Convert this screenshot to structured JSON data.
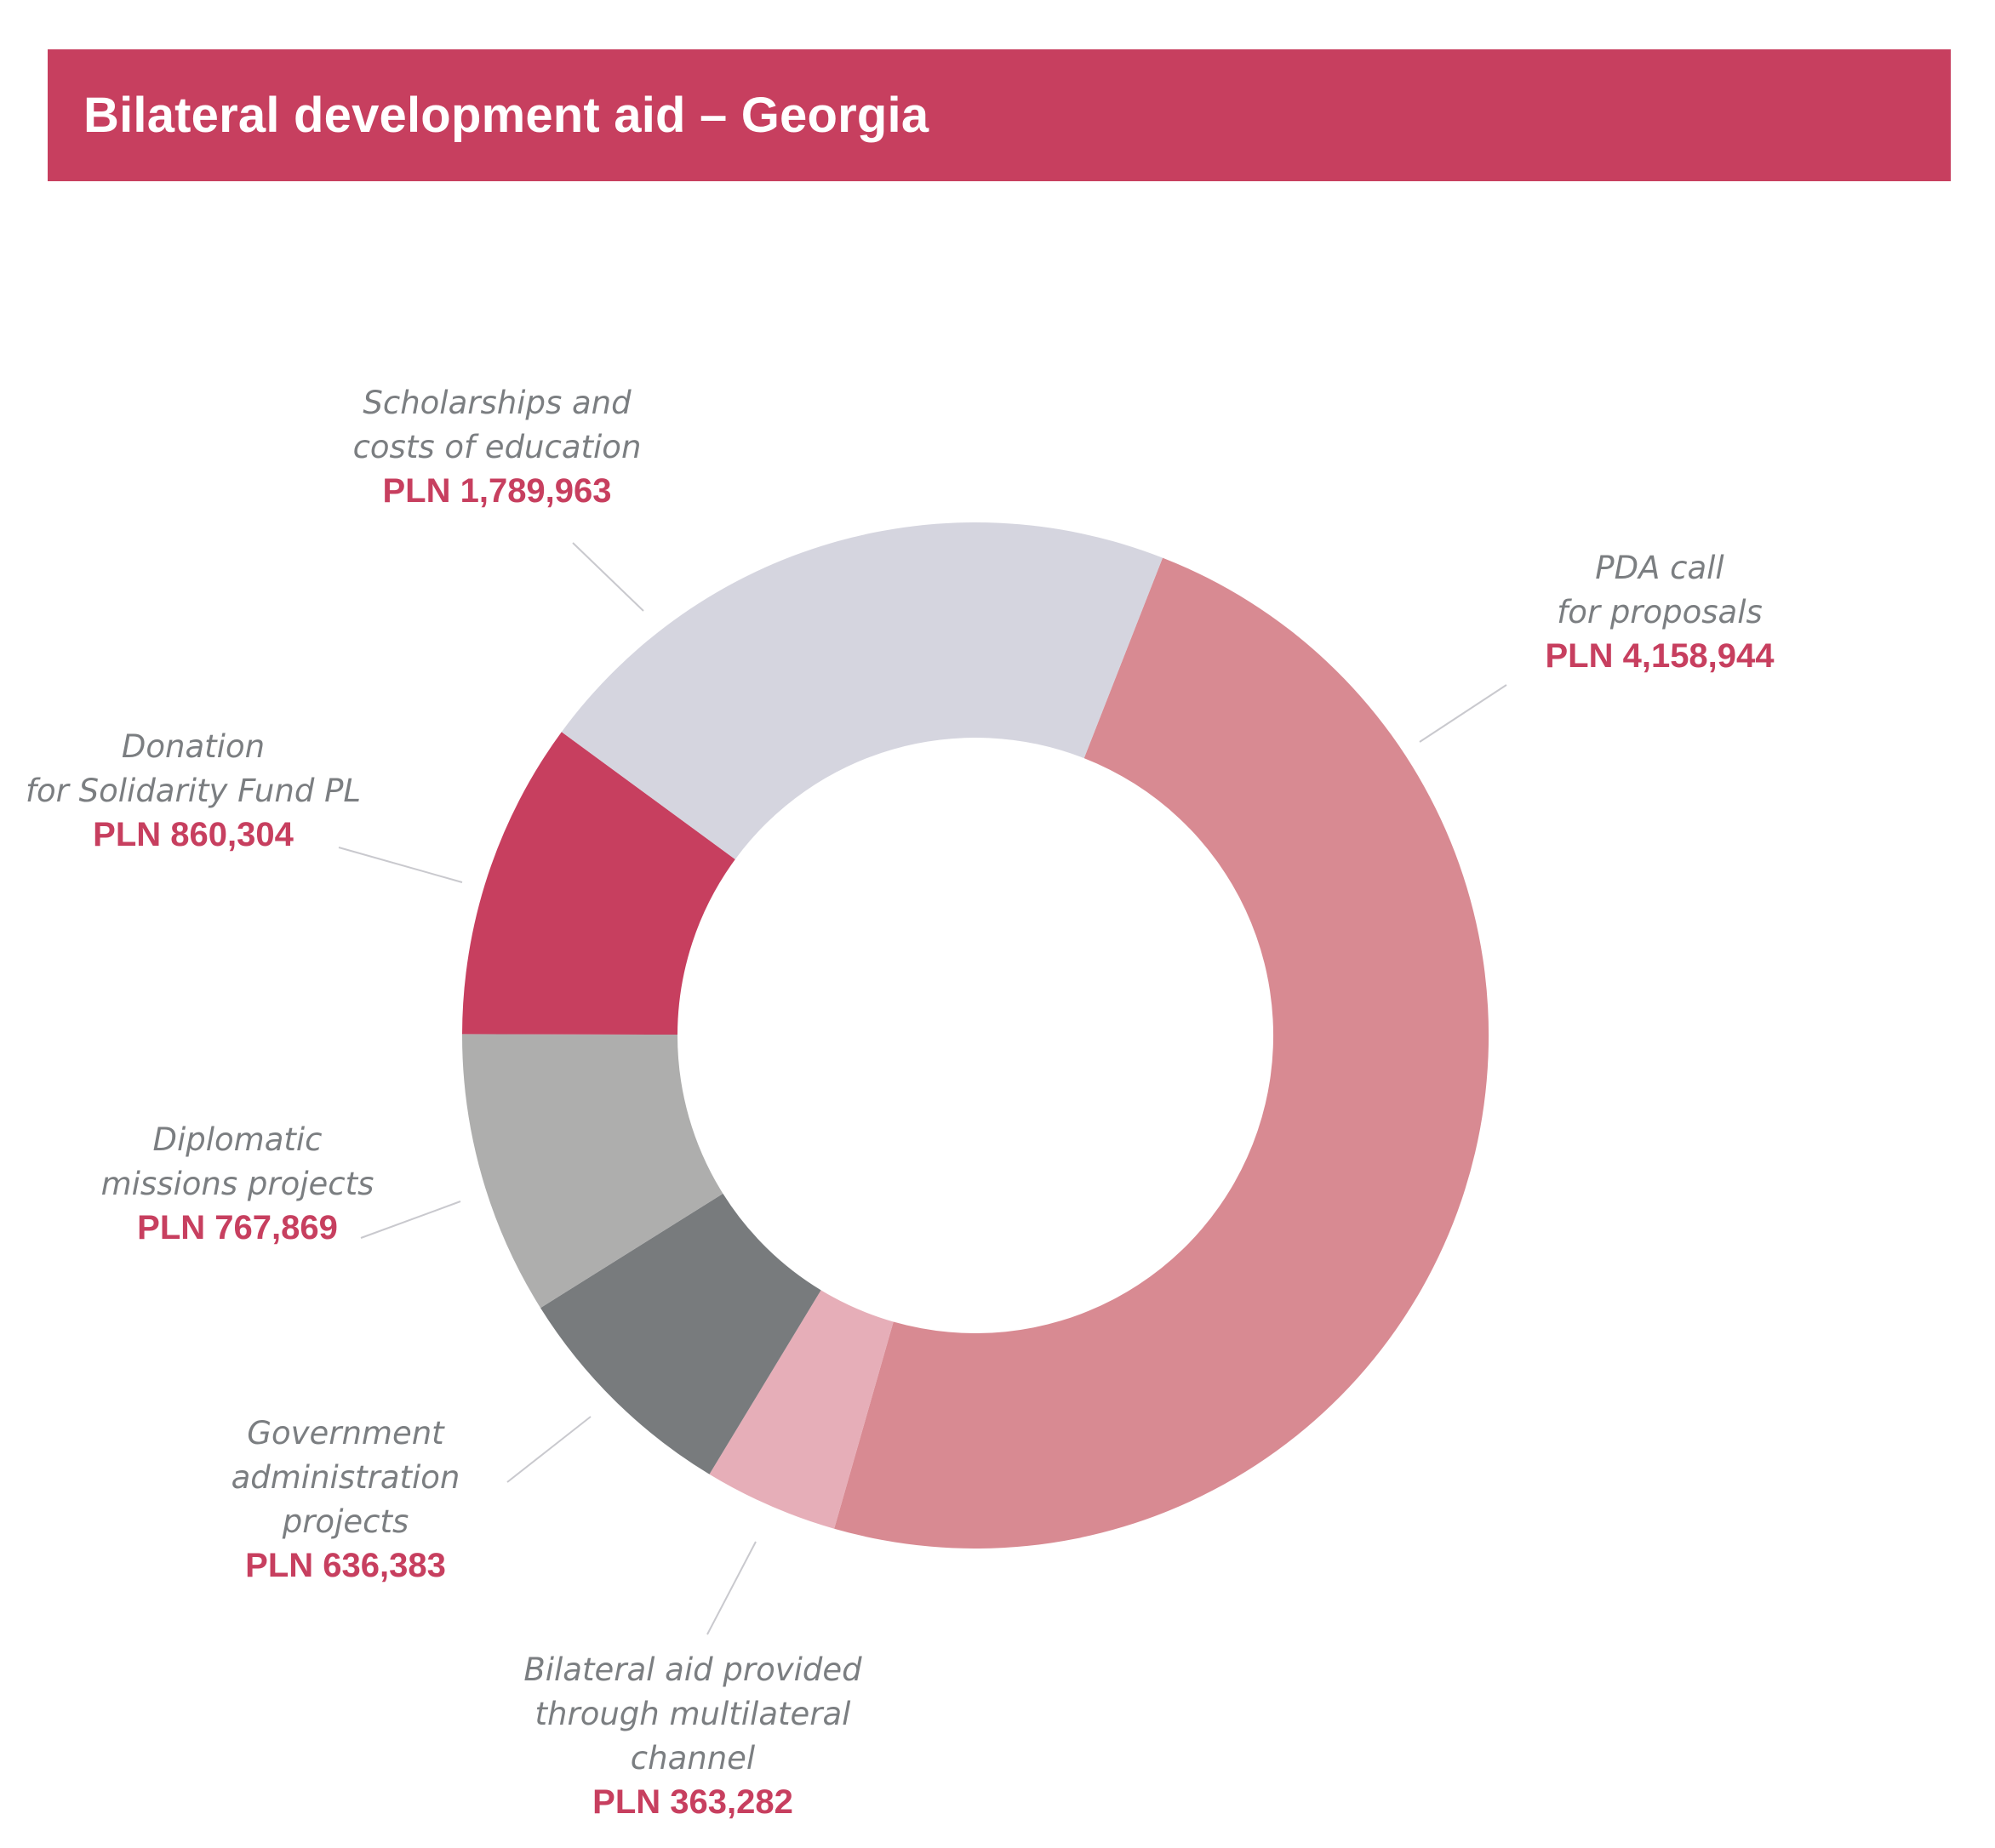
{
  "header": {
    "title": "Bilateral development aid – Georgia"
  },
  "chart_data": {
    "type": "pie",
    "variant": "donut",
    "title": "Bilateral development aid – Georgia",
    "currency": "PLN",
    "segments": [
      {
        "key": "pda",
        "name_lines": [
          "PDA call",
          "for proposals"
        ],
        "value": 4158944,
        "value_label": "PLN 4,158,944",
        "color": "#d88a92"
      },
      {
        "key": "multilateral",
        "name_lines": [
          "Bilateral aid provided",
          "through multilateral",
          "channel"
        ],
        "value": 363282,
        "value_label": "PLN 363,282",
        "color": "#e6aeb8"
      },
      {
        "key": "government",
        "name_lines": [
          "Government",
          "administration",
          "projects"
        ],
        "value": 636383,
        "value_label": "PLN 636,383",
        "color": "#787b7d"
      },
      {
        "key": "diplomatic",
        "name_lines": [
          "Diplomatic",
          "missions projects"
        ],
        "value": 767869,
        "value_label": "PLN 767,869",
        "color": "#aeaead"
      },
      {
        "key": "solidarity",
        "name_lines": [
          "Donation",
          "for Solidarity Fund PL"
        ],
        "value": 860304,
        "value_label": "PLN 860,304",
        "color": "#c73f5f"
      },
      {
        "key": "scholarships",
        "name_lines": [
          "Scholarships and",
          "costs of education"
        ],
        "value": 1789963,
        "value_label": "PLN 1,789,963",
        "color": "#d5d5df"
      }
    ]
  }
}
